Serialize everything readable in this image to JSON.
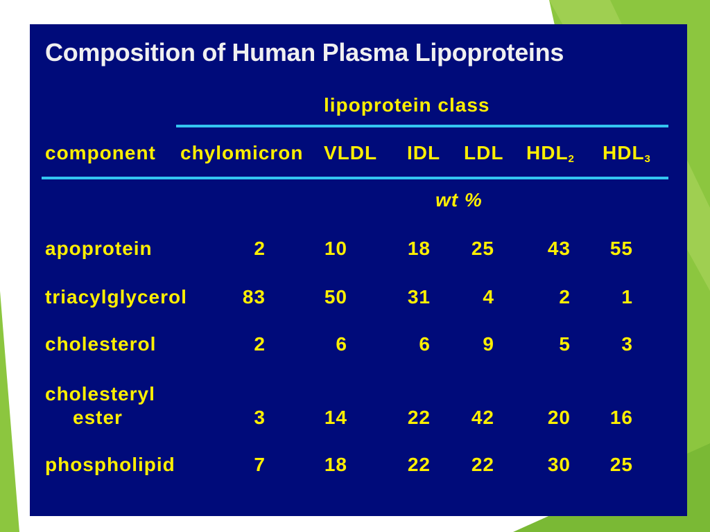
{
  "title": "Composition of Human Plasma Lipoproteins",
  "class_header": "lipoprotein class",
  "component_header": "component",
  "columns": [
    {
      "base": "chylomicron",
      "sub": ""
    },
    {
      "base": "VLDL",
      "sub": ""
    },
    {
      "base": "IDL",
      "sub": ""
    },
    {
      "base": "LDL",
      "sub": ""
    },
    {
      "base": "HDL",
      "sub": "2"
    },
    {
      "base": "HDL",
      "sub": "3"
    }
  ],
  "unit": "wt %",
  "rows": [
    {
      "label": "apoprotein",
      "label2": "",
      "values": [
        "2",
        "10",
        "18",
        "25",
        "43",
        "55"
      ]
    },
    {
      "label": "triacylglycerol",
      "label2": "",
      "values": [
        "83",
        "50",
        "31",
        "4",
        "2",
        "1"
      ]
    },
    {
      "label": "cholesterol",
      "label2": "",
      "values": [
        "2",
        "6",
        "6",
        "9",
        "5",
        "3"
      ]
    },
    {
      "label": "cholesteryl",
      "label2": "ester",
      "values": [
        "3",
        "14",
        "22",
        "42",
        "20",
        "16"
      ]
    },
    {
      "label": "phospholipid",
      "label2": "",
      "values": [
        "7",
        "18",
        "22",
        "22",
        "30",
        "25"
      ]
    }
  ],
  "colors": {
    "slide_background": "#000b7a",
    "title_text": "#f0f0f0",
    "table_text": "#ffef00",
    "rule": "#33c4f0",
    "accent_green": "#8cc63f"
  }
}
